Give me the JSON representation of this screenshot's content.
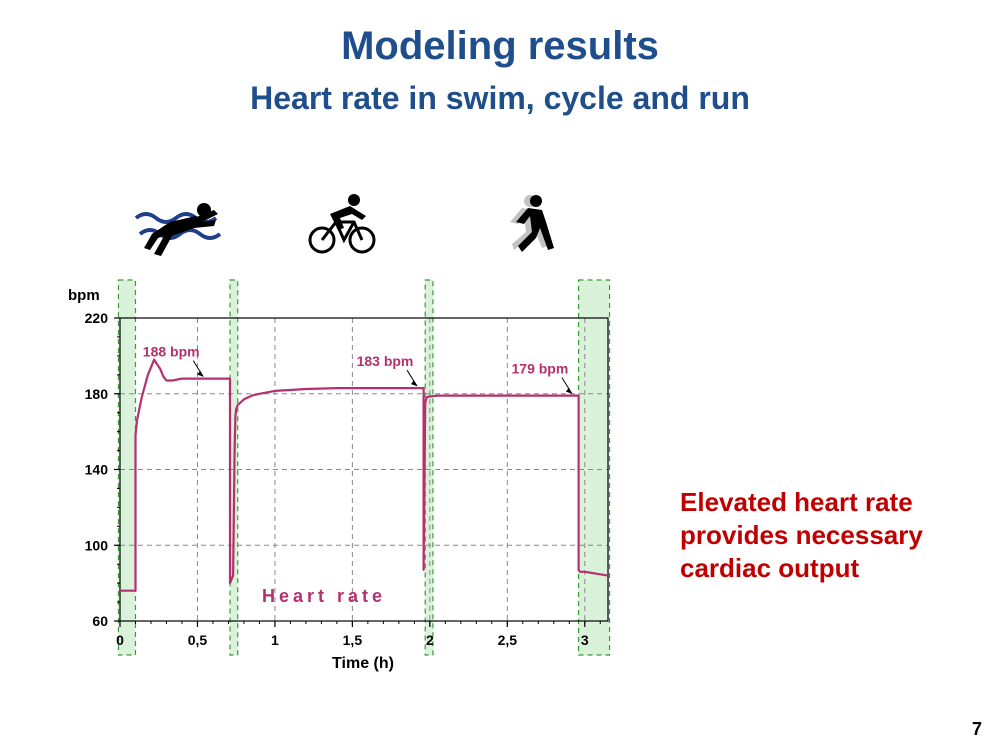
{
  "slide": {
    "title": "Modeling results",
    "subtitle": "Heart rate in swim, cycle and run",
    "callout": [
      "Elevated heart rate",
      "provides necessary",
      "cardiac output"
    ],
    "page_number": "7"
  },
  "icons": [
    "swimmer-icon",
    "cyclist-icon",
    "runner-icon"
  ],
  "colors": {
    "title": "#1f4e8c",
    "series": "#b5306e",
    "callout": "#c00000",
    "transition_band": "#d9f2d9",
    "transition_border": "#3a9a3a"
  },
  "chart_data": {
    "type": "line",
    "xlabel": "Time (h)",
    "ylabel": "bpm",
    "xlim": [
      0,
      3.15
    ],
    "ylim": [
      60,
      220
    ],
    "x_ticks": [
      0,
      0.5,
      1,
      1.5,
      2,
      2.5,
      3
    ],
    "x_tick_labels": [
      "0",
      "0,5",
      "1",
      "1,5",
      "2",
      "2,5",
      "3"
    ],
    "y_ticks": [
      60,
      100,
      140,
      180,
      220
    ],
    "y_tick_labels": [
      "60",
      "100",
      "140",
      "180",
      "220"
    ],
    "grid": true,
    "transition_bands": [
      [
        -0.01,
        0.1
      ],
      [
        0.71,
        0.76
      ],
      [
        1.97,
        2.02
      ],
      [
        2.96,
        3.16
      ]
    ],
    "series": [
      {
        "name": "Heart rate",
        "x": [
          0,
          0.1,
          0.1,
          0.11,
          0.14,
          0.18,
          0.22,
          0.26,
          0.28,
          0.3,
          0.34,
          0.4,
          0.5,
          0.6,
          0.7,
          0.71,
          0.71,
          0.73,
          0.74,
          0.745,
          0.75,
          0.76,
          0.8,
          0.85,
          0.9,
          1.0,
          1.1,
          1.2,
          1.4,
          1.6,
          1.8,
          1.95,
          1.96,
          1.96,
          1.97,
          1.975,
          1.98,
          1.99,
          2.05,
          2.2,
          2.5,
          2.8,
          2.95,
          2.96,
          2.96,
          2.97,
          3.0,
          3.15
        ],
        "y": [
          76,
          76,
          158,
          166,
          178,
          190,
          198,
          193,
          189,
          187,
          187,
          188,
          188,
          188,
          188,
          188,
          80,
          84,
          150,
          168,
          172,
          174,
          177,
          179,
          180,
          181.5,
          182,
          182.5,
          183,
          183,
          183,
          183,
          183,
          87,
          175,
          177,
          178,
          178.5,
          179,
          179,
          179,
          179,
          179,
          179,
          87,
          86,
          86,
          84
        ]
      }
    ],
    "annotations": [
      {
        "text": "188 bpm",
        "x": 0.55,
        "y": 188
      },
      {
        "text": "183 bpm",
        "x": 1.93,
        "y": 183
      },
      {
        "text": "179 bpm",
        "x": 2.93,
        "y": 179
      }
    ]
  }
}
